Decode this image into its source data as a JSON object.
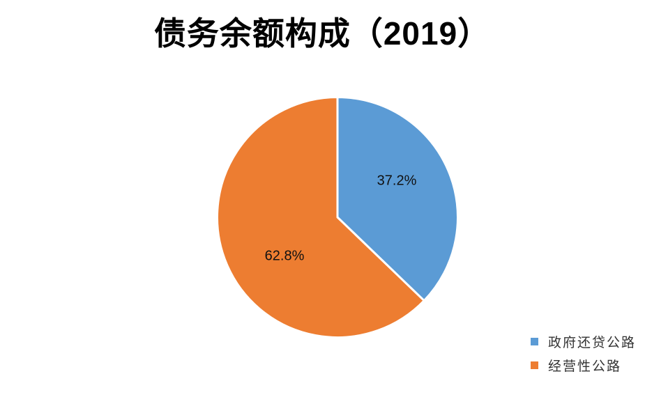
{
  "chart_data": {
    "type": "pie",
    "title": "债务余额构成（2019）",
    "slices": [
      {
        "label": "政府还贷公路",
        "value": 37.2,
        "display": "37.2%",
        "color": "#5B9BD5"
      },
      {
        "label": "经营性公路",
        "value": 62.8,
        "display": "62.8%",
        "color": "#ED7D31"
      }
    ],
    "start_angle_deg": 0,
    "direction": "clockwise",
    "data_labels": "percent",
    "legend_position": "bottom-right",
    "background": "#FFFFFF",
    "separator_color": "#FFFFFF"
  }
}
